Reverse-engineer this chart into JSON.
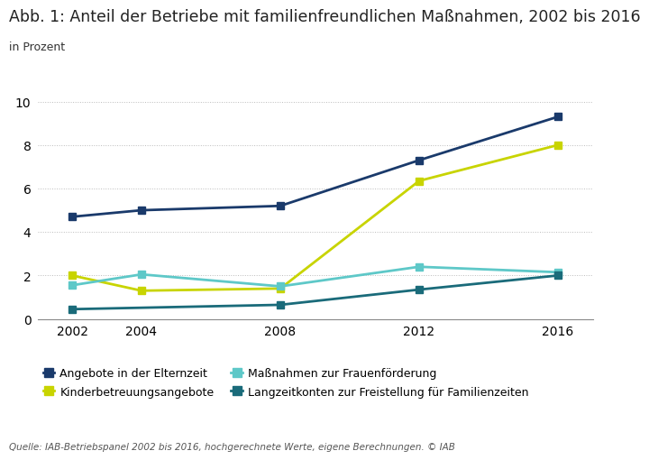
{
  "title": "Abb. 1: Anteil der Betriebe mit familienfreundlichen Maßnahmen, 2002 bis 2016",
  "subtitle": "in Prozent",
  "source": "Quelle: IAB-Betriebspanel 2002 bis 2016, hochgerechnete Werte, eigene Berechnungen. © IAB",
  "x": [
    2002,
    2004,
    2008,
    2012,
    2016
  ],
  "series": [
    {
      "name": "Angebote in der Elternzeit",
      "values": [
        4.7,
        5.0,
        5.2,
        7.3,
        9.3
      ],
      "color": "#1a3a6b",
      "marker": "s",
      "linewidth": 2.0
    },
    {
      "name": "Kinderbetreuungsangebote",
      "values": [
        2.0,
        1.3,
        1.4,
        6.35,
        8.0
      ],
      "color": "#c8d400",
      "marker": "s",
      "linewidth": 2.0
    },
    {
      "name": "Maßnahmen zur Frauenförderung",
      "values": [
        1.55,
        2.05,
        1.5,
        2.4,
        2.15
      ],
      "color": "#5ec8c8",
      "marker": "s",
      "linewidth": 2.0
    },
    {
      "name": "Langzeitkonten zur Freistellung für Familienzeiten",
      "values": [
        0.45,
        null,
        0.65,
        1.35,
        2.0
      ],
      "color": "#1a6b7a",
      "marker": "s",
      "linewidth": 2.0
    }
  ],
  "ylim": [
    0,
    11
  ],
  "yticks": [
    0,
    2,
    4,
    6,
    8,
    10
  ],
  "xlim": [
    2001,
    2017
  ],
  "xticks": [
    2002,
    2004,
    2008,
    2012,
    2016
  ],
  "background_color": "#ffffff",
  "grid_color": "#bbbbbb",
  "title_fontsize": 12.5,
  "subtitle_fontsize": 9,
  "tick_fontsize": 10,
  "legend_fontsize": 9,
  "source_fontsize": 7.5
}
